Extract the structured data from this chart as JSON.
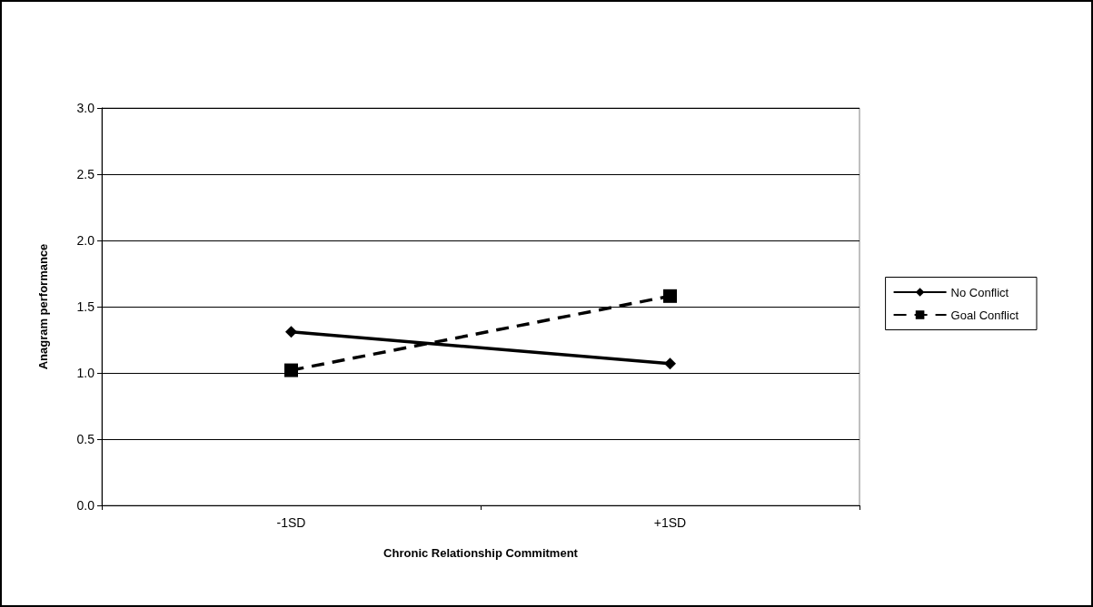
{
  "chart_data": {
    "type": "line",
    "xlabel": "Chronic Relationship Commitment",
    "ylabel": "Anagram performance",
    "categories": [
      "-1SD",
      "+1SD"
    ],
    "series": [
      {
        "name": "No Conflict",
        "color": "#000000",
        "values": [
          1.31,
          1.07
        ],
        "marker": "diamond",
        "line_style": "solid"
      },
      {
        "name": "Goal Conflict",
        "color": "#000000",
        "values": [
          1.02,
          1.58
        ],
        "marker": "square",
        "line_style": "dashed"
      }
    ],
    "ylim": [
      0,
      3
    ],
    "yticks": [
      {
        "value": 0,
        "label": "0.0"
      },
      {
        "value": 0.5,
        "label": "0.5"
      },
      {
        "value": 1,
        "label": "1.0"
      },
      {
        "value": 1.5,
        "label": "1.5"
      },
      {
        "value": 2,
        "label": "2.0"
      },
      {
        "value": 2.5,
        "label": "2.5"
      },
      {
        "value": 3,
        "label": "3.0"
      }
    ],
    "grid": "y",
    "legend": "right"
  }
}
